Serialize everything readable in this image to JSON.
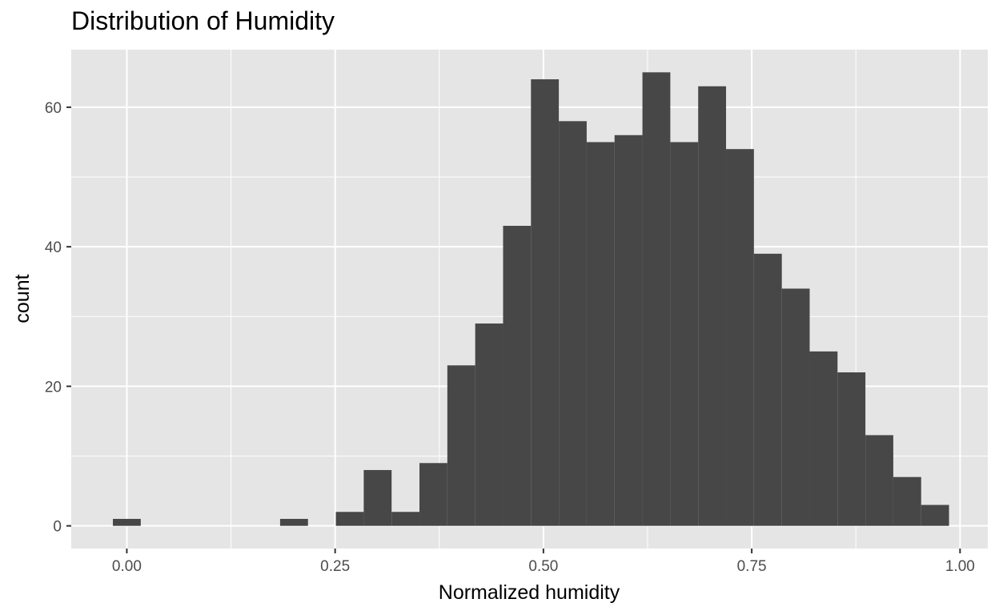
{
  "chart_data": {
    "type": "bar",
    "title": "Distribution of Humidity",
    "xlabel": "Normalized humidity",
    "ylabel": "count",
    "xlim": [
      -0.0667,
      1.0333
    ],
    "ylim": [
      -3.25,
      68.25
    ],
    "x_ticks": [
      {
        "value": 0.0,
        "label": "0.00"
      },
      {
        "value": 0.25,
        "label": "0.25"
      },
      {
        "value": 0.5,
        "label": "0.50"
      },
      {
        "value": 0.75,
        "label": "0.75"
      },
      {
        "value": 1.0,
        "label": "1.00"
      }
    ],
    "y_ticks": [
      {
        "value": 0,
        "label": "0"
      },
      {
        "value": 20,
        "label": "20"
      },
      {
        "value": 40,
        "label": "40"
      },
      {
        "value": 60,
        "label": "60"
      }
    ],
    "bin_width": 0.03345,
    "bin_centers": [
      0.0,
      0.03345,
      0.0669,
      0.10035,
      0.1338,
      0.16725,
      0.2007,
      0.23415,
      0.2676,
      0.30105,
      0.3345,
      0.36795,
      0.4014,
      0.43485,
      0.4683,
      0.50175,
      0.5352,
      0.56865,
      0.6021,
      0.63555,
      0.669,
      0.70245,
      0.7359,
      0.76935,
      0.8028,
      0.83625,
      0.8697,
      0.90315,
      0.9366,
      0.97005
    ],
    "counts": [
      1,
      0,
      0,
      0,
      0,
      0,
      1,
      0,
      2,
      8,
      2,
      9,
      23,
      29,
      43,
      64,
      58,
      55,
      56,
      65,
      55,
      63,
      54,
      39,
      34,
      25,
      22,
      13,
      7,
      3
    ],
    "colors": {
      "panel_background": "#e5e5e5",
      "grid_major": "#ffffff",
      "bar_fill": "#474747",
      "tick_text": "#4d4d4d"
    },
    "grid": true,
    "legend": "none"
  }
}
